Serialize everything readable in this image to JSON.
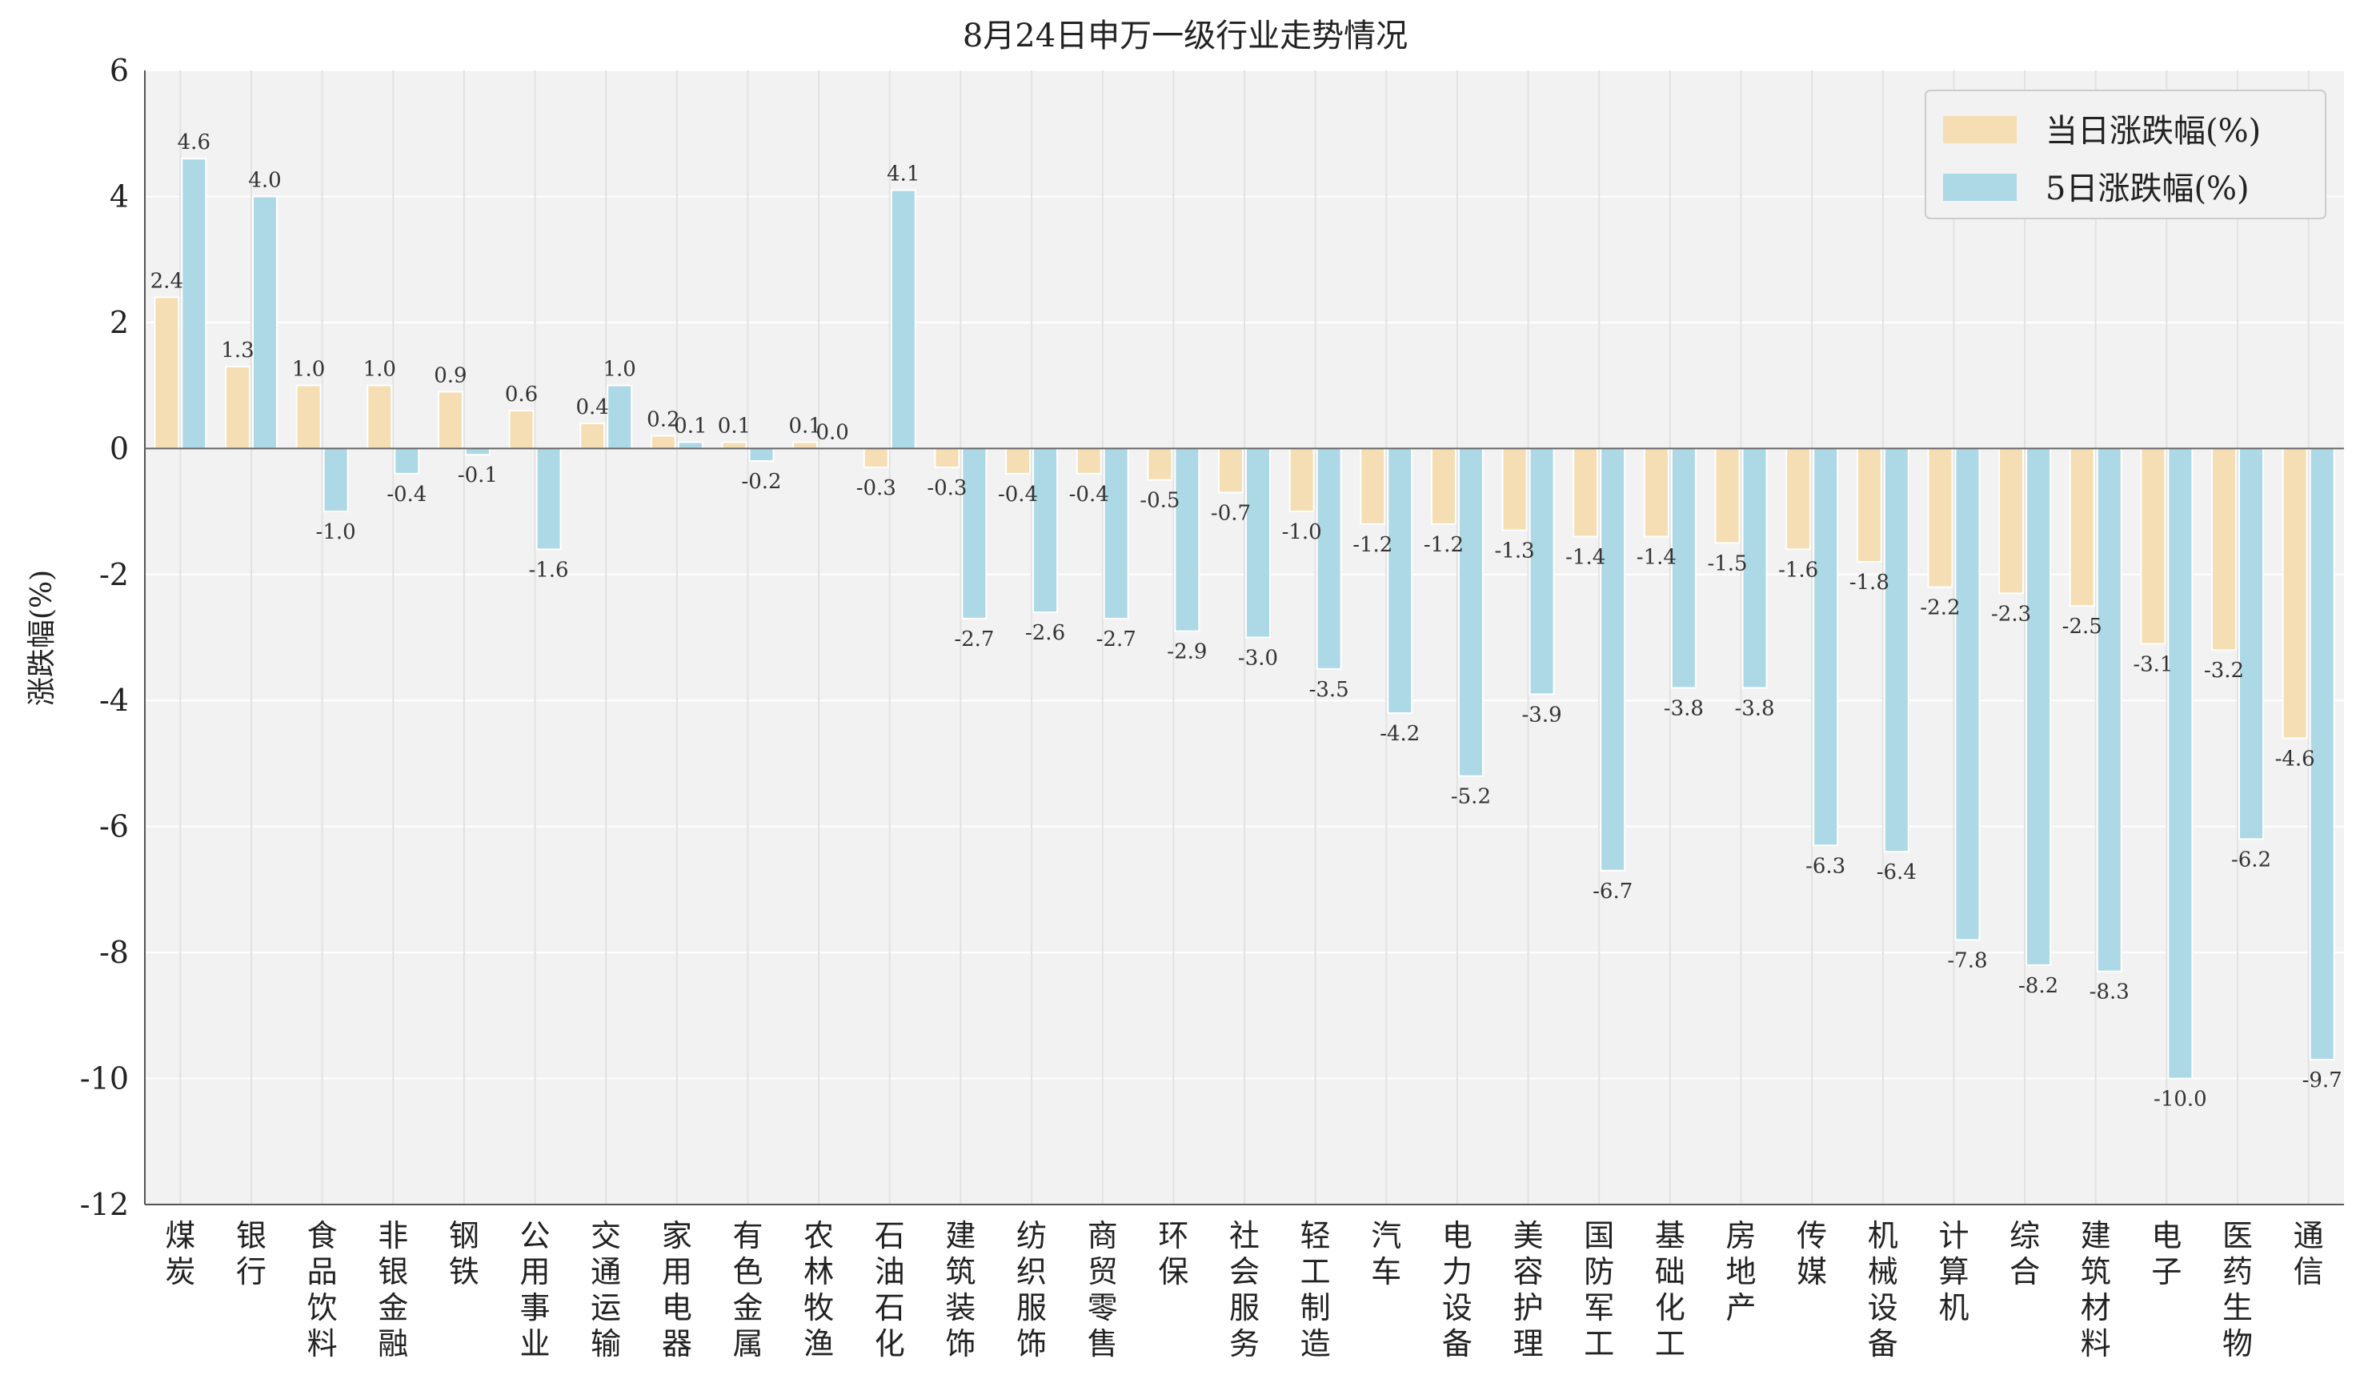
{
  "chart_data": {
    "type": "bar",
    "title": "8月24日申万一级行业走势情况",
    "xlabel": "",
    "ylabel": "涨跌幅(%)",
    "ylim": [
      -12,
      6
    ],
    "yticks": [
      6,
      4,
      2,
      0,
      -2,
      -4,
      -6,
      -8,
      -10,
      -12
    ],
    "grid": true,
    "legend_position": "top-right",
    "background_color": "#f2f2f2",
    "categories": [
      "煤炭",
      "银行",
      "食品饮料",
      "非银金融",
      "钢铁",
      "公用事业",
      "交通运输",
      "家用电器",
      "有色金属",
      "农林牧渔",
      "石油石化",
      "建筑装饰",
      "纺织服饰",
      "商贸零售",
      "环保",
      "社会服务",
      "轻工制造",
      "汽车",
      "电力设备",
      "美容护理",
      "国防军工",
      "基础化工",
      "房地产",
      "传媒",
      "机械设备",
      "计算机",
      "综合",
      "建筑材料",
      "电子",
      "医药生物",
      "通信"
    ],
    "series": [
      {
        "name": "当日涨跌幅(%)",
        "color": "#f5deb3",
        "values": [
          2.4,
          1.3,
          1.0,
          1.0,
          0.9,
          0.6,
          0.4,
          0.2,
          0.1,
          0.1,
          -0.3,
          -0.3,
          -0.4,
          -0.4,
          -0.5,
          -0.7,
          -1.0,
          -1.2,
          -1.2,
          -1.3,
          -1.4,
          -1.4,
          -1.5,
          -1.6,
          -1.8,
          -2.2,
          -2.3,
          -2.5,
          -3.1,
          -3.2,
          -4.6
        ],
        "labels": [
          "2.4",
          "1.3",
          "1.0",
          "1.0",
          "0.9",
          "0.6",
          "0.4",
          "0.2",
          "0.1",
          "0.1",
          "-0.3",
          "-0.3",
          "-0.4",
          "-0.4",
          "-0.5",
          "-0.7",
          "-1.0",
          "-1.2",
          "-1.2",
          "-1.3",
          "-1.4",
          "-1.4",
          "-1.5",
          "-1.6",
          "-1.8",
          "-2.2",
          "-2.3",
          "-2.5",
          "-3.1",
          "-3.2",
          "-4.6"
        ]
      },
      {
        "name": "5日涨跌幅(%)",
        "color": "#add8e6",
        "values": [
          4.6,
          4.0,
          -1.0,
          -0.4,
          -0.1,
          -1.6,
          1.0,
          0.1,
          -0.2,
          0.0,
          4.1,
          -2.7,
          -2.6,
          -2.7,
          -2.9,
          -3.0,
          -3.5,
          -4.2,
          -5.2,
          -3.9,
          -6.7,
          -3.8,
          -3.8,
          -6.3,
          -6.4,
          -7.8,
          -8.2,
          -8.3,
          -10.0,
          -6.2,
          -9.7
        ],
        "labels": [
          "4.6",
          "4.0",
          "-1.0",
          "-0.4",
          "-0.1",
          "-1.6",
          "1.0",
          "0.1",
          "-0.2",
          "0.0",
          "4.1",
          "-2.7",
          "-2.6",
          "-2.7",
          "-2.9",
          "-3.0",
          "-3.5",
          "-4.2",
          "-5.2",
          "-3.9",
          "-6.7",
          "-3.8",
          "-3.8",
          "-6.3",
          "-6.4",
          "-7.8",
          "-8.2",
          "-8.3",
          "-10.0",
          "-6.2",
          "-9.7"
        ]
      }
    ]
  }
}
